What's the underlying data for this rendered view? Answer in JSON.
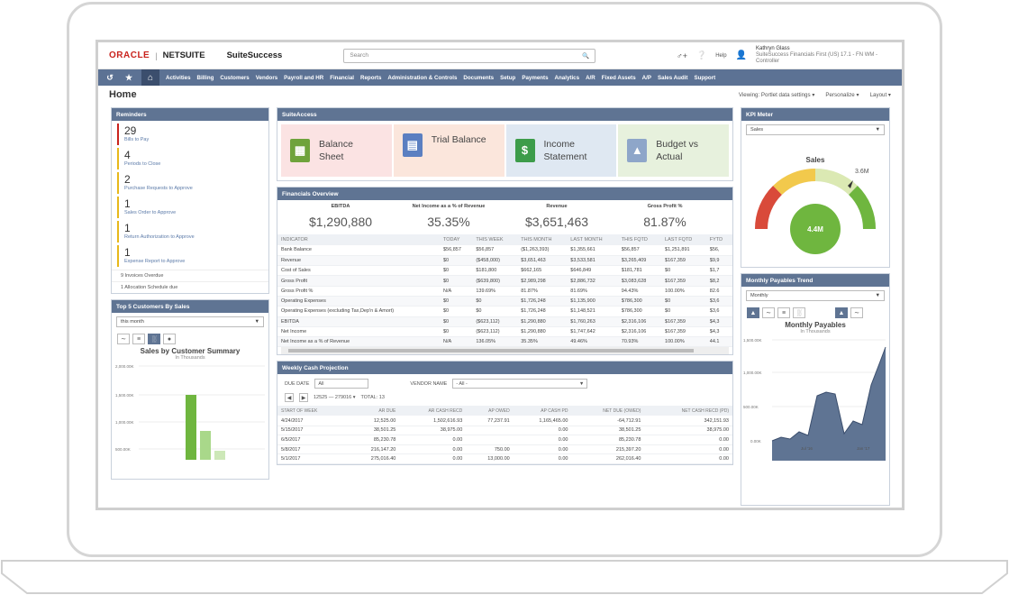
{
  "header": {
    "brand_oracle": "ORACLE",
    "brand_sep": "|",
    "brand_netsuite": "NETSUITE",
    "brand_suite": "SuiteSuccess",
    "search_placeholder": "Search",
    "help_label": "Help",
    "user_name": "Kathryn Glass",
    "user_role": "SuiteSuccess Financials First (US) 17.1 - FN WM - Controller"
  },
  "nav": {
    "items": [
      "Activities",
      "Billing",
      "Customers",
      "Vendors",
      "Payroll and HR",
      "Financial",
      "Reports",
      "Administration & Controls",
      "Documents",
      "Setup",
      "Payments",
      "Analytics",
      "A/R",
      "Fixed Assets",
      "A/P",
      "Sales Audit",
      "Support"
    ]
  },
  "page": {
    "title": "Home",
    "viewing": "Viewing: Portlet data settings",
    "personalize": "Personalize",
    "layout": "Layout"
  },
  "reminders": {
    "title": "Reminders",
    "items": [
      {
        "count": "29",
        "label": "Bills to Pay"
      },
      {
        "count": "4",
        "label": "Periods to Close"
      },
      {
        "count": "2",
        "label": "Purchase Requests to Approve"
      },
      {
        "count": "1",
        "label": "Sales Order to Approve"
      },
      {
        "count": "1",
        "label": "Return Authorization to Approve"
      },
      {
        "count": "1",
        "label": "Expense Report to Approve"
      }
    ],
    "lines": [
      "9 Invoices Overdue",
      "1 Allocation Schedule due"
    ]
  },
  "top5": {
    "title": "Top 5 Customers By Sales",
    "select": "this month",
    "chart_title": "Sales by Customer Summary",
    "chart_sub": "In Thousands",
    "yticks": [
      "2,000.00K",
      "1,500.00K",
      "1,000.00K",
      "500.00K"
    ]
  },
  "suiteaccess": {
    "title": "SuiteAccess",
    "tiles": [
      {
        "l1": "Balance",
        "l2": "Sheet",
        "bg": "#fbe3e3",
        "icon_color": "#6fa33b"
      },
      {
        "l1": "Trial Balance",
        "l2": "",
        "bg": "#fbe6dc",
        "icon_color": "#5b7fc1"
      },
      {
        "l1": "Income",
        "l2": "Statement",
        "bg": "#dfe8f2",
        "icon_color": "#3d9c4a"
      },
      {
        "l1": "Budget vs",
        "l2": "Actual",
        "bg": "#e7f1dd",
        "icon_color": "#8ea6c9"
      }
    ]
  },
  "financials": {
    "title": "Financials Overview",
    "kpis": [
      {
        "label": "EBITDA",
        "value": "$1,290,880"
      },
      {
        "label": "Net Income as a % of Revenue",
        "value": "35.35%"
      },
      {
        "label": "Revenue",
        "value": "$3,651,463"
      },
      {
        "label": "Gross Profit %",
        "value": "81.87%"
      }
    ],
    "columns": [
      "INDICATOR",
      "TODAY",
      "THIS WEEK",
      "THIS MONTH",
      "LAST MONTH",
      "THIS FQTD",
      "LAST FQTD",
      "FYTD"
    ],
    "rows": [
      [
        "Bank Balance",
        "$56,857",
        "$56,857",
        "($1,263,393)",
        "$1,355,661",
        "$56,857",
        "$1,251,891",
        "$56,"
      ],
      [
        "Revenue",
        "$0",
        "($458,000)",
        "$3,651,463",
        "$3,533,581",
        "$3,265,409",
        "$167,359",
        "$9,9"
      ],
      [
        "Cost of Sales",
        "$0",
        "$181,800",
        "$662,165",
        "$646,849",
        "$181,781",
        "$0",
        "$1,7"
      ],
      [
        "Gross Profit",
        "$0",
        "($639,800)",
        "$2,989,298",
        "$2,886,732",
        "$3,083,628",
        "$167,359",
        "$8,2"
      ],
      [
        "Gross Profit %",
        "N/A",
        "139.69%",
        "81.87%",
        "81.69%",
        "94.43%",
        "100.00%",
        "82.6"
      ],
      [
        "Operating Expenses",
        "$0",
        "$0",
        "$1,726,248",
        "$1,135,900",
        "$786,300",
        "$0",
        "$3,6"
      ],
      [
        "Operating Expenses (excluding Tax,Dep'n & Amort)",
        "$0",
        "$0",
        "$1,726,248",
        "$1,148,521",
        "$786,300",
        "$0",
        "$3,6"
      ],
      [
        "EBITDA",
        "$0",
        "($623,112)",
        "$1,290,880",
        "$1,760,263",
        "$2,316,106",
        "$167,359",
        "$4,3"
      ],
      [
        "Net Income",
        "$0",
        "($623,112)",
        "$1,290,880",
        "$1,747,642",
        "$2,316,106",
        "$167,359",
        "$4,3"
      ],
      [
        "Net Income as a % of Revenue",
        "N/A",
        "136.05%",
        "35.35%",
        "49.46%",
        "70.93%",
        "100.00%",
        "44.1"
      ]
    ]
  },
  "cash": {
    "title": "Weekly Cash Projection",
    "due_date_label": "DUE DATE",
    "due_date_value": "All",
    "vendor_label": "VENDOR NAME",
    "vendor_value": "- All -",
    "range": "12525 — 279016",
    "total": "TOTAL: 13",
    "columns": [
      "START OF WEEK",
      "AR DUE",
      "AR CASH RECD",
      "AP OWED",
      "AP CASH PD",
      "NET DUE (OWED)",
      "NET CASH RECD (PD)"
    ],
    "rows": [
      [
        "4/24/2017",
        "12,525.00",
        "1,502,616.93",
        "77,237.91",
        "1,165,465.00",
        "-64,712.91",
        "342,151.93"
      ],
      [
        "5/15/2017",
        "38,501.25",
        "38,975.00",
        "",
        "0.00",
        "38,501.25",
        "38,975.00"
      ],
      [
        "6/5/2017",
        "85,230.78",
        "0.00",
        "",
        "0.00",
        "85,230.78",
        "0.00"
      ],
      [
        "5/8/2017",
        "216,147.20",
        "0.00",
        "750.00",
        "0.00",
        "215,397.20",
        "0.00"
      ],
      [
        "5/1/2017",
        "275,016.40",
        "0.00",
        "13,000.00",
        "0.00",
        "262,016.40",
        "0.00"
      ]
    ]
  },
  "kpi_meter": {
    "title": "KPI Meter",
    "select": "Sales",
    "gauge_title": "Sales",
    "target": "3.6M",
    "value": "4.4M"
  },
  "payables": {
    "title": "Monthly Payables Trend",
    "select": "Monthly",
    "chart_title": "Monthly Payables",
    "chart_sub": "In Thousands",
    "yticks": [
      "1,500.00K",
      "1,000.00K",
      "500.00K",
      "0.00K"
    ],
    "xticks": [
      "Jul '16",
      "Jan '17"
    ]
  }
}
